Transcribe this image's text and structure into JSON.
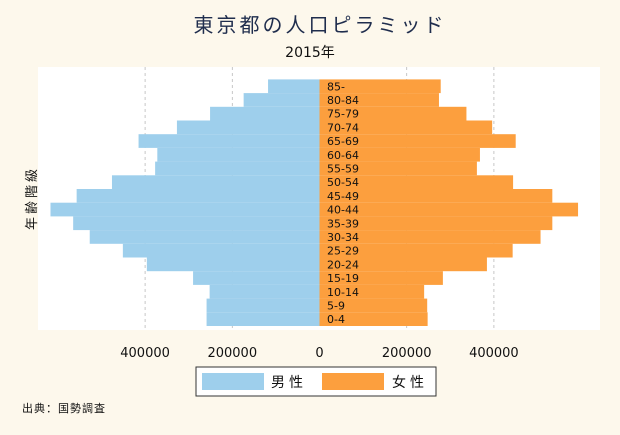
{
  "chart_data": {
    "type": "bar",
    "title": "東京都の人口ピラミッド",
    "subtitle": "2015年",
    "ylabel": "年齢階級",
    "xlim": [
      -620000,
      620000
    ],
    "xticks": [
      {
        "value": -400000,
        "label": "400000"
      },
      {
        "value": -200000,
        "label": "200000"
      },
      {
        "value": 0,
        "label": "0"
      },
      {
        "value": 200000,
        "label": "200000"
      },
      {
        "value": 400000,
        "label": "400000"
      }
    ],
    "grid": true,
    "legend_position": "bottom",
    "categories": [
      "0-4",
      "5-9",
      "10-14",
      "15-19",
      "20-24",
      "25-29",
      "30-34",
      "35-39",
      "40-44",
      "45-49",
      "50-54",
      "55-59",
      "60-64",
      "65-69",
      "70-74",
      "75-79",
      "80-84",
      "85-"
    ],
    "series": [
      {
        "name": "男性",
        "color": "#9ecfec",
        "values": [
          259000,
          259000,
          252000,
          290000,
          396000,
          451000,
          527000,
          565000,
          617000,
          557000,
          476000,
          377000,
          372000,
          415000,
          327000,
          251000,
          174000,
          118000
        ]
      },
      {
        "name": "女性",
        "color": "#fc9f3e",
        "values": [
          248000,
          247000,
          240000,
          283000,
          384000,
          443000,
          507000,
          534000,
          593000,
          534000,
          444000,
          361000,
          368000,
          450000,
          396000,
          337000,
          274000,
          278000
        ]
      }
    ],
    "note": "出典：国勢調査"
  }
}
